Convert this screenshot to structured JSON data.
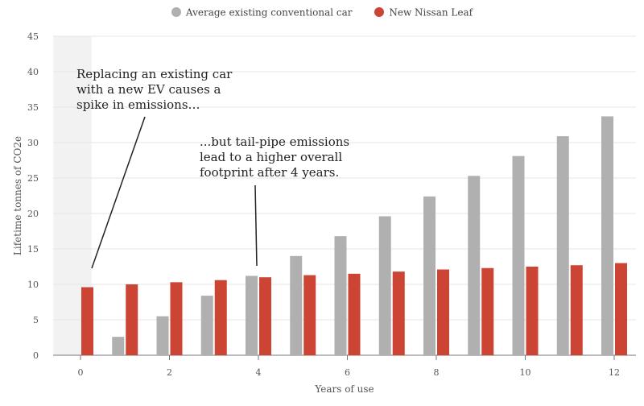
{
  "chart_data": {
    "type": "bar",
    "x": [
      0,
      1,
      2,
      3,
      4,
      5,
      6,
      7,
      8,
      9,
      10,
      11,
      12
    ],
    "x_ticks": [
      "0",
      "2",
      "4",
      "6",
      "8",
      "10",
      "12"
    ],
    "x_tick_values": [
      0,
      2,
      4,
      6,
      8,
      10,
      12
    ],
    "y_ticks": [
      "0",
      "5",
      "10",
      "15",
      "20",
      "25",
      "30",
      "35",
      "40",
      "45"
    ],
    "y_tick_values": [
      0,
      5,
      10,
      15,
      20,
      25,
      30,
      35,
      40,
      45
    ],
    "xlabel": "Years of use",
    "ylabel": "Lifetime tonnes of CO2e",
    "ylim": [
      0,
      45
    ],
    "grid": true,
    "legend_position": "top-center",
    "highlight_band": {
      "from": -0.5,
      "to": 0.5,
      "color": "#f2f2f2"
    },
    "series": [
      {
        "name": "Average existing conventional car",
        "color": "#b0b0b0",
        "values": [
          0,
          2.6,
          5.5,
          8.4,
          11.2,
          14.0,
          16.8,
          19.6,
          22.4,
          25.3,
          28.1,
          30.9,
          33.7
        ]
      },
      {
        "name": "New Nissan Leaf",
        "color": "#cc4433",
        "values": [
          9.6,
          10.0,
          10.3,
          10.6,
          11.0,
          11.3,
          11.5,
          11.8,
          12.1,
          12.3,
          12.5,
          12.7,
          13.0
        ]
      }
    ],
    "annotations": [
      {
        "id": "note1",
        "lines": [
          "Replacing an existing car",
          "with a new EV causes a",
          "spike in emissions…"
        ]
      },
      {
        "id": "note2",
        "lines": [
          "...but tail-pipe emissions",
          "lead to a higher overall",
          "footprint after 4 years."
        ]
      }
    ]
  }
}
